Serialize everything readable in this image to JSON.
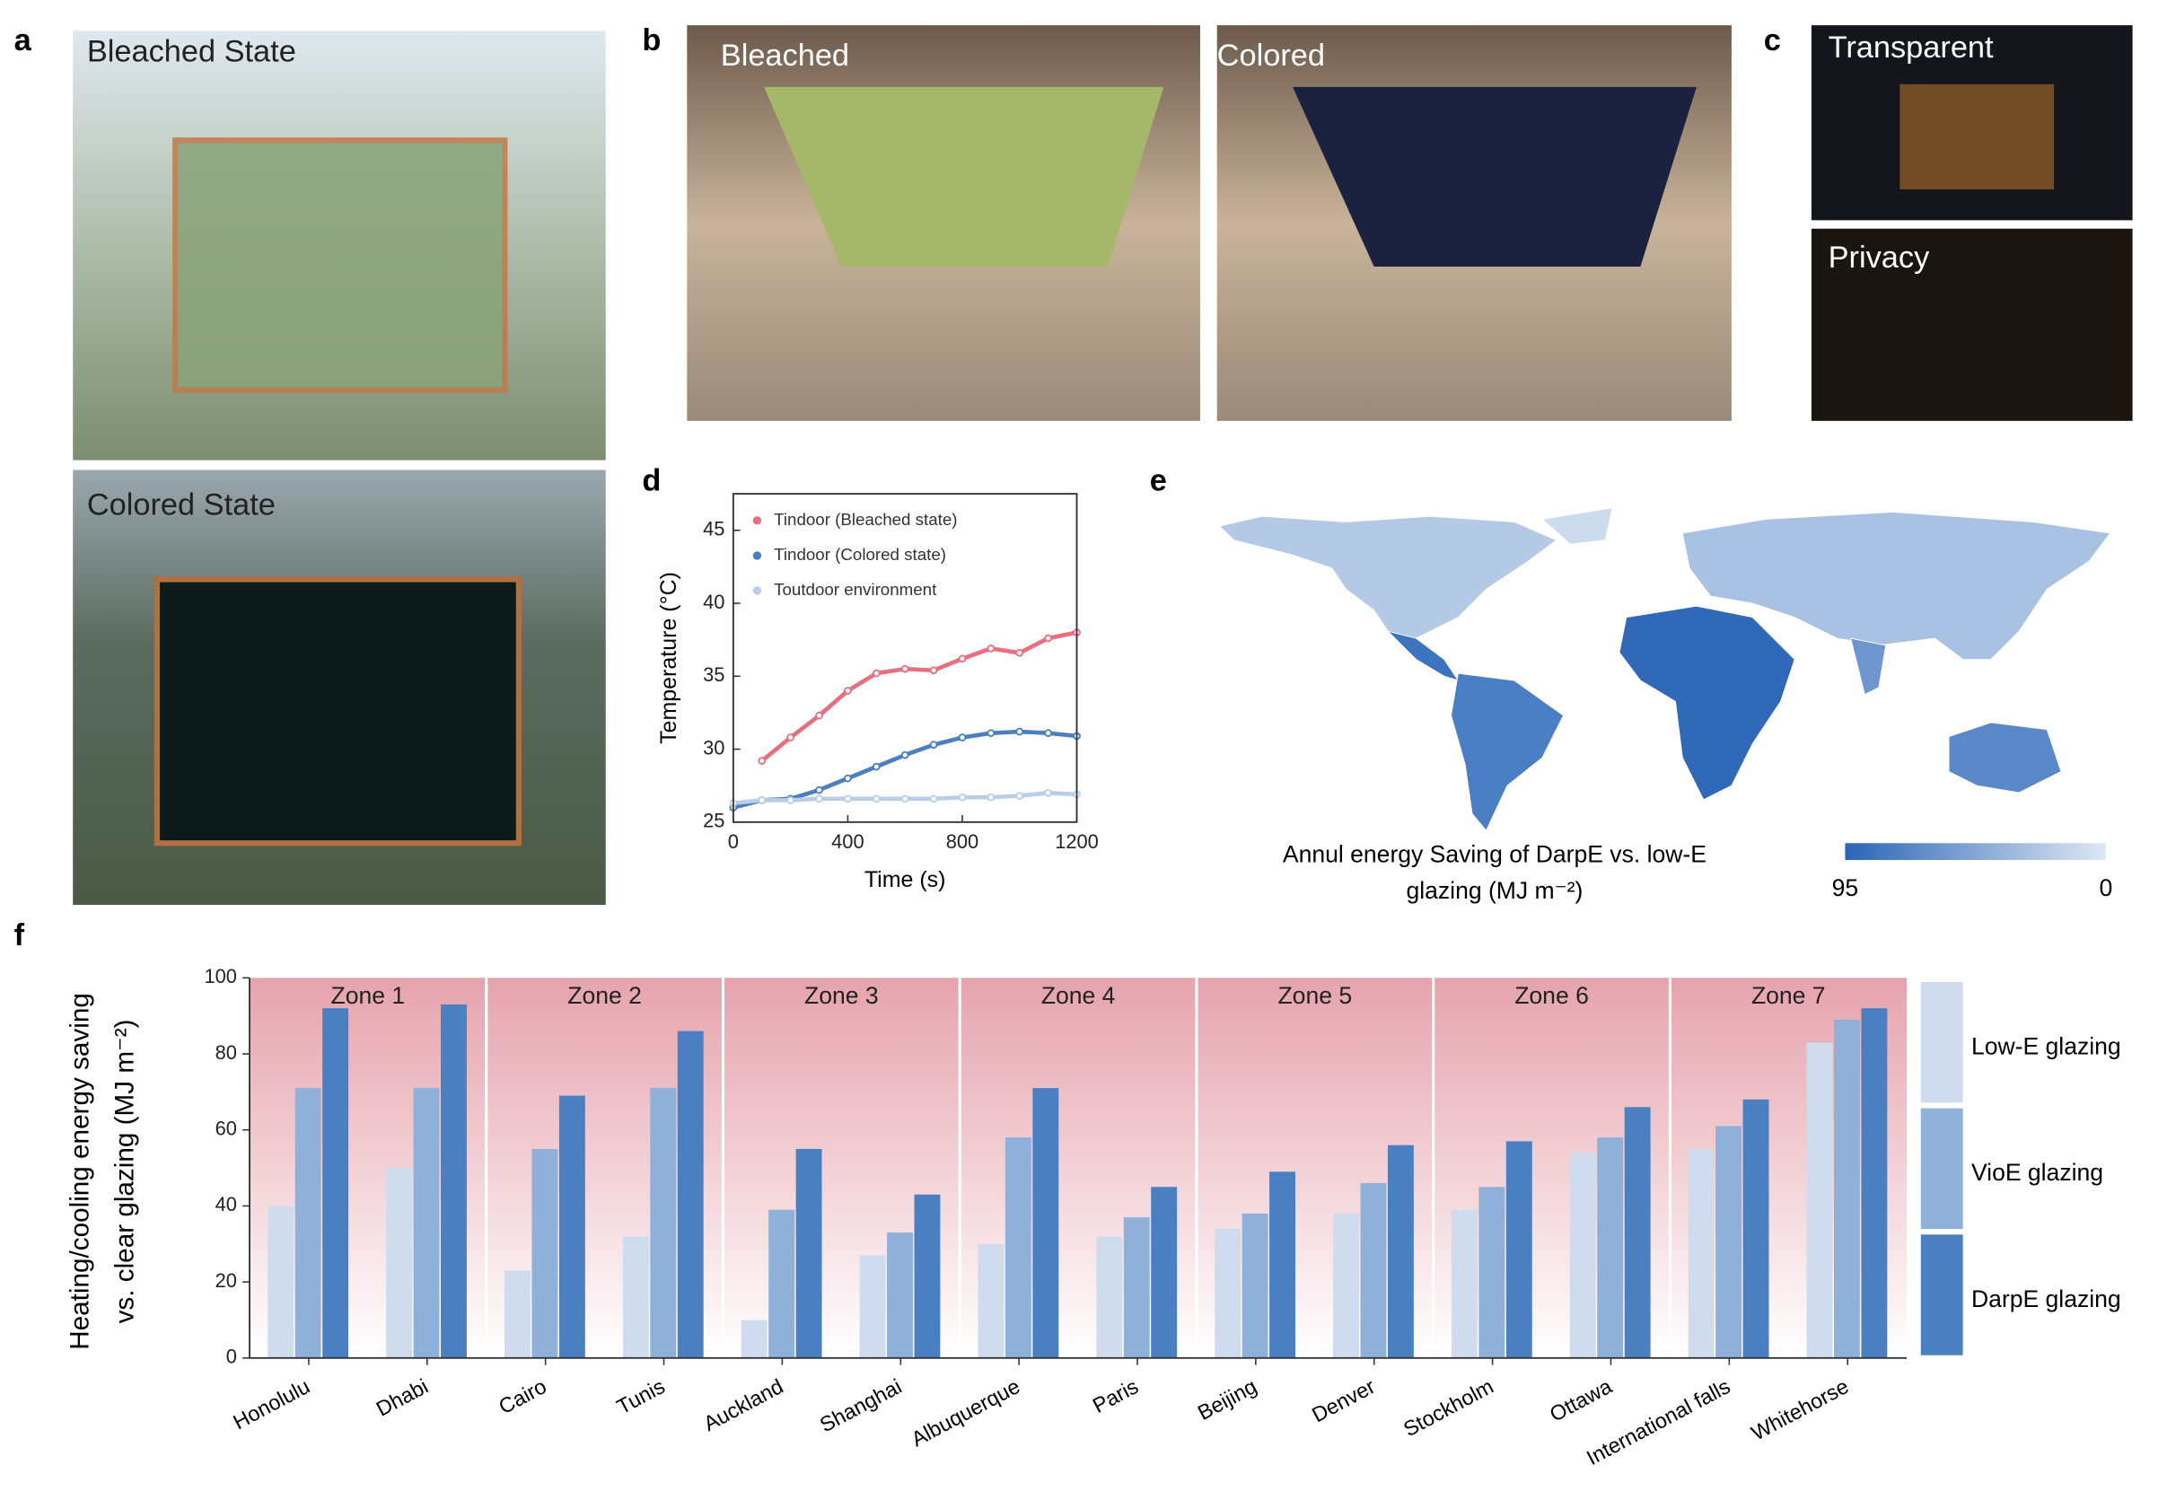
{
  "panel_labels": [
    "a",
    "b",
    "c",
    "d",
    "e",
    "f"
  ],
  "photo_labels": {
    "a": [
      "Bleached State",
      "Colored State"
    ],
    "b": [
      "Bleached",
      "Colored"
    ],
    "c": [
      "Transparent",
      "Privacy"
    ]
  },
  "chart_data": [
    {
      "type": "line",
      "xlabel": "Time (s)",
      "ylabel": "Temperature (°C)",
      "x": [
        0,
        100,
        200,
        300,
        400,
        500,
        600,
        700,
        800,
        900,
        1000,
        1100,
        1200
      ],
      "series": [
        {
          "name": "Tindoor (Bleached state)",
          "color": "#e8707e",
          "values": [
            null,
            29.2,
            30.8,
            32.3,
            34.0,
            35.2,
            35.5,
            35.4,
            36.2,
            36.9,
            36.6,
            37.6,
            38.0
          ]
        },
        {
          "name": "Tindoor (Colored state)",
          "color": "#4a7fc1",
          "values": [
            26.0,
            26.5,
            26.6,
            27.2,
            28.0,
            28.8,
            29.6,
            30.3,
            30.8,
            31.1,
            31.2,
            31.1,
            30.9
          ]
        },
        {
          "name": "Toutdoor environment",
          "color": "#b9cde8",
          "values": [
            26.3,
            26.5,
            26.5,
            26.6,
            26.6,
            26.6,
            26.6,
            26.6,
            26.7,
            26.7,
            26.8,
            27.0,
            26.9
          ]
        }
      ],
      "xlim": [
        0,
        1200
      ],
      "xticks": [
        0,
        400,
        800,
        1200
      ],
      "ylim": [
        25,
        47.5
      ],
      "yticks": [
        25,
        30,
        35,
        40,
        45
      ],
      "legend": "upper left"
    },
    {
      "type": "map",
      "caption": [
        "Annul energy Saving of DarpE vs. low-E",
        "glazing (MJ m⁻²)"
      ],
      "clim": [
        95,
        0
      ],
      "cticks": [
        95,
        0
      ],
      "cmap": [
        "#2b65b6",
        "#dfe8f4"
      ]
    },
    {
      "type": "bar",
      "ylabel": [
        "Heating/cooling energy saving",
        "vs. clear glazing (MJ m⁻²)"
      ],
      "categories": [
        "Honolulu",
        "Dhabi",
        "Cairo",
        "Tunis",
        "Auckland",
        "Shanghai",
        "Albuquerque",
        "Paris",
        "Beijing",
        "Denver",
        "Stockholm",
        "Ottawa",
        "International falls",
        "Whitehorse"
      ],
      "zones": [
        "Zone 1",
        "Zone 2",
        "Zone 3",
        "Zone 4",
        "Zone 5",
        "Zone 6",
        "Zone 7"
      ],
      "series": [
        {
          "name": "Low-E glazing",
          "color": "#cfdcee",
          "values": [
            40,
            50,
            23,
            32,
            10,
            27,
            30,
            32,
            34,
            38,
            39,
            54,
            55,
            83
          ]
        },
        {
          "name": "VioE glazing",
          "color": "#8fb0d9",
          "values": [
            71,
            71,
            55,
            71,
            39,
            33,
            58,
            37,
            38,
            46,
            45,
            58,
            61,
            89
          ]
        },
        {
          "name": "DarpE glazing",
          "color": "#4a7fc1",
          "values": [
            92,
            93,
            69,
            86,
            55,
            43,
            71,
            45,
            49,
            56,
            57,
            66,
            68,
            92
          ]
        }
      ],
      "ylim": [
        0,
        100
      ],
      "yticks": [
        0,
        20,
        40,
        60,
        80,
        100
      ],
      "legend": "right"
    }
  ]
}
